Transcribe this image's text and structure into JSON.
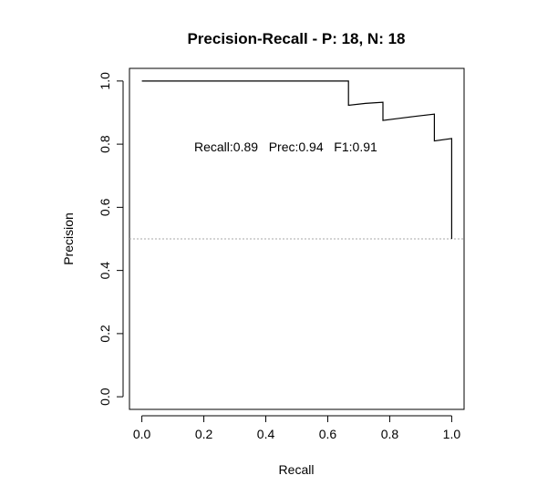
{
  "chart_data": {
    "type": "line",
    "title": "Precision-Recall - P: 18, N: 18",
    "xlabel": "Recall",
    "ylabel": "Precision",
    "xlim": [
      -0.04,
      1.04
    ],
    "ylim": [
      -0.04,
      1.04
    ],
    "x_ticks": [
      0.0,
      0.2,
      0.4,
      0.6,
      0.8,
      1.0
    ],
    "x_tick_labels": [
      "0.0",
      "0.2",
      "0.4",
      "0.6",
      "0.8",
      "1.0"
    ],
    "y_ticks": [
      0.0,
      0.2,
      0.4,
      0.6,
      0.8,
      1.0
    ],
    "y_tick_labels": [
      "0.0",
      "0.2",
      "0.4",
      "0.6",
      "0.8",
      "1.0"
    ],
    "grid": false,
    "baseline": {
      "y": 0.5,
      "style": "dotted",
      "color": "#aaaaaa"
    },
    "annotation": "Recall:0.89   Prec:0.94   F1:0.91",
    "series": [
      {
        "color": "#000000",
        "step": true,
        "points": [
          [
            0.0,
            1.0
          ],
          [
            0.667,
            1.0
          ],
          [
            0.667,
            0.923
          ],
          [
            0.722,
            0.929
          ],
          [
            0.778,
            0.933
          ],
          [
            0.778,
            0.875
          ],
          [
            0.833,
            0.882
          ],
          [
            0.889,
            0.889
          ],
          [
            0.944,
            0.895
          ],
          [
            0.944,
            0.81
          ],
          [
            1.0,
            0.818
          ],
          [
            1.0,
            0.5
          ]
        ]
      }
    ]
  }
}
